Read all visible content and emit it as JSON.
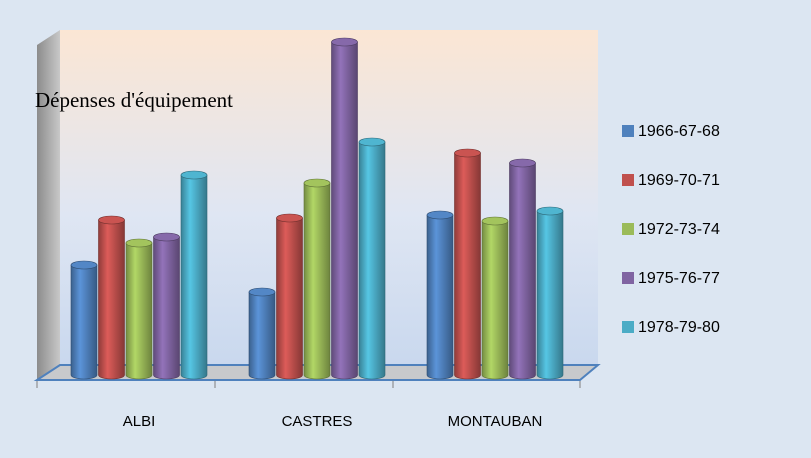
{
  "chart_data": {
    "type": "bar3d",
    "title": "Dépenses d'équipement",
    "categories": [
      "ALBI",
      "CASTRES",
      "MONTAUBAN"
    ],
    "series": [
      {
        "name": "1966-67-68",
        "color": "#4f81bd",
        "values": [
          110,
          83,
          160
        ]
      },
      {
        "name": "1969-70-71",
        "color": "#c0504d",
        "values": [
          155,
          157,
          222
        ]
      },
      {
        "name": "1972-73-74",
        "color": "#9bbb59",
        "values": [
          132,
          192,
          154
        ]
      },
      {
        "name": "1975-76-77",
        "color": "#8064a2",
        "values": [
          138,
          333,
          212
        ]
      },
      {
        "name": "1978-79-80",
        "color": "#4bacc6",
        "values": [
          200,
          233,
          164
        ]
      }
    ],
    "ylim": [
      0,
      350
    ],
    "legend": "right"
  }
}
